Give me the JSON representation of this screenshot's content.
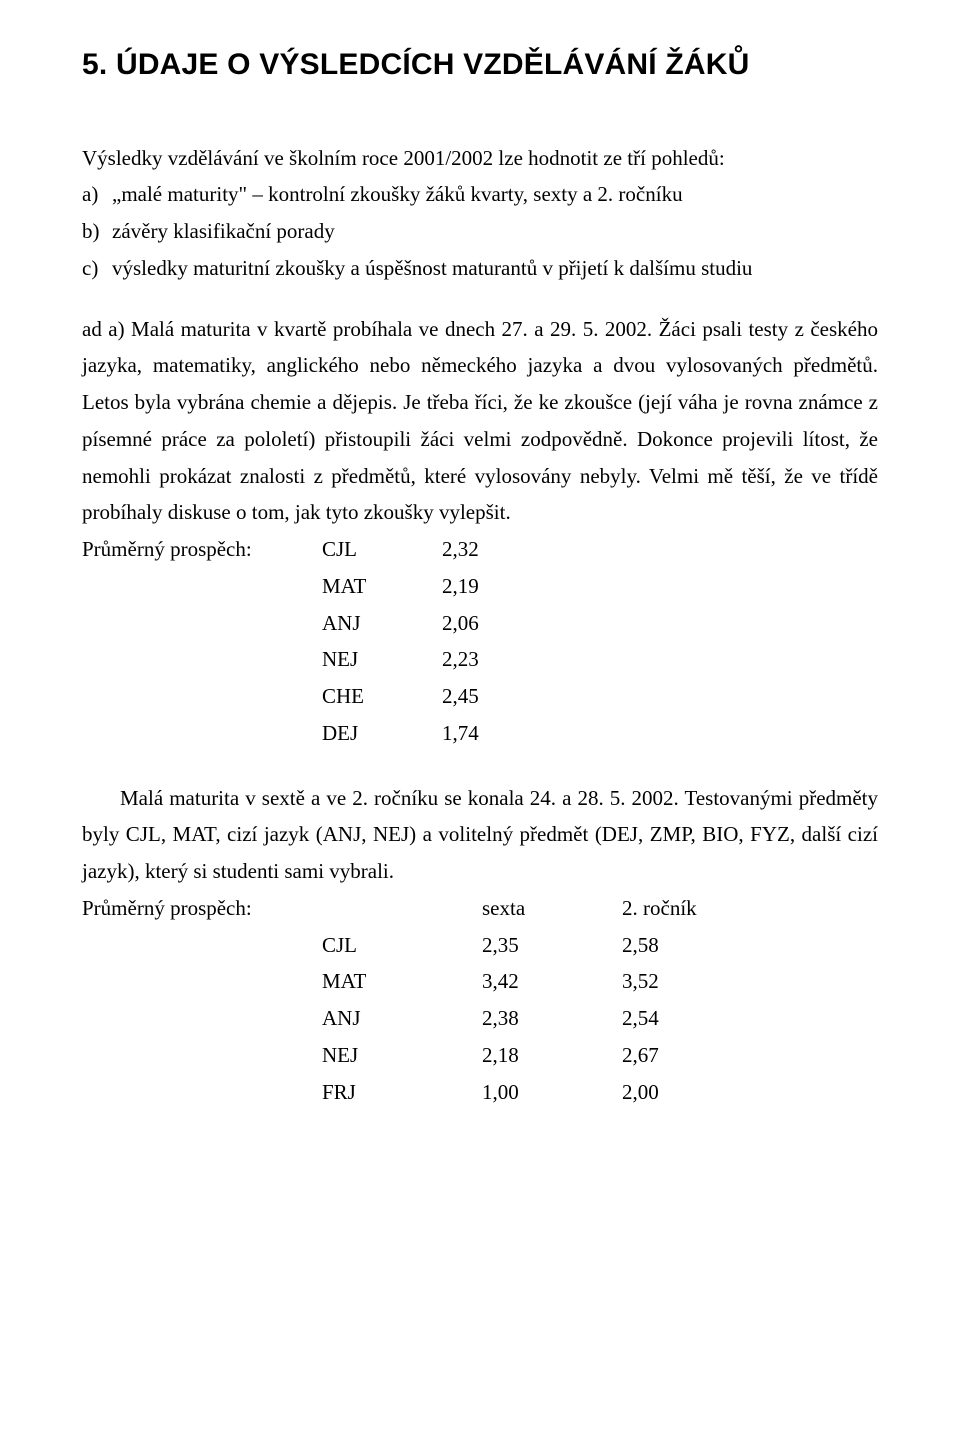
{
  "heading": "5. ÚDAJE O VÝSLEDCÍCH VZDĚLÁVÁNÍ ŽÁKŮ",
  "intro": "Výsledky vzdělávání ve školním roce 2001/2002 lze hodnotit ze tří pohledů:",
  "list": {
    "a": {
      "marker": "a)",
      "text": "„malé maturity\" – kontrolní zkoušky žáků kvarty, sexty a 2. ročníku"
    },
    "b": {
      "marker": "b)",
      "text": "závěry klasifikační porady"
    },
    "c": {
      "marker": "c)",
      "text": "výsledky maturitní zkoušky a úspěšnost maturantů v přijetí k dalšímu studiu"
    }
  },
  "para1": "ad a)  Malá maturita v kvartě probíhala ve dnech 27. a 29. 5. 2002. Žáci psali testy z českého jazyka, matematiky, anglického nebo německého jazyka a dvou vylosovaných předmětů. Letos byla vybrána chemie a dějepis. Je třeba říci, že ke zkoušce (její váha je rovna známce z písemné práce za pololetí) přistoupili žáci velmi zodpovědně. Dokonce projevili lítost, že nemohli prokázat znalosti z předmětů, které vylosovány nebyly. Velmi mě těší, že ve třídě probíhaly diskuse o tom, jak tyto zkoušky vylepšit.",
  "table1": {
    "label": "Průměrný prospěch:",
    "rows": [
      {
        "subj": "CJL",
        "val": "2,32"
      },
      {
        "subj": "MAT",
        "val": "2,19"
      },
      {
        "subj": "ANJ",
        "val": "2,06"
      },
      {
        "subj": "NEJ",
        "val": "2,23"
      },
      {
        "subj": "CHE",
        "val": "2,45"
      },
      {
        "subj": "DEJ",
        "val": "1,74"
      }
    ]
  },
  "para2": "Malá maturita v sextě a ve 2. ročníku se konala 24. a 28. 5. 2002. Testovanými předměty byly CJL, MAT, cizí jazyk (ANJ, NEJ) a volitelný předmět (DEJ, ZMP, BIO, FYZ, další cizí jazyk), který si studenti sami vybrali.",
  "table2": {
    "label": "Průměrný prospěch:",
    "head": {
      "c1": "sexta",
      "c2": "2. ročník"
    },
    "rows": [
      {
        "subj": "CJL",
        "v1": "2,35",
        "v2": "2,58"
      },
      {
        "subj": "MAT",
        "v1": "3,42",
        "v2": "3,52"
      },
      {
        "subj": "ANJ",
        "v1": "2,38",
        "v2": "2,54"
      },
      {
        "subj": "NEJ",
        "v1": "2,18",
        "v2": "2,67"
      },
      {
        "subj": "FRJ",
        "v1": "1,00",
        "v2": "2,00"
      }
    ]
  }
}
